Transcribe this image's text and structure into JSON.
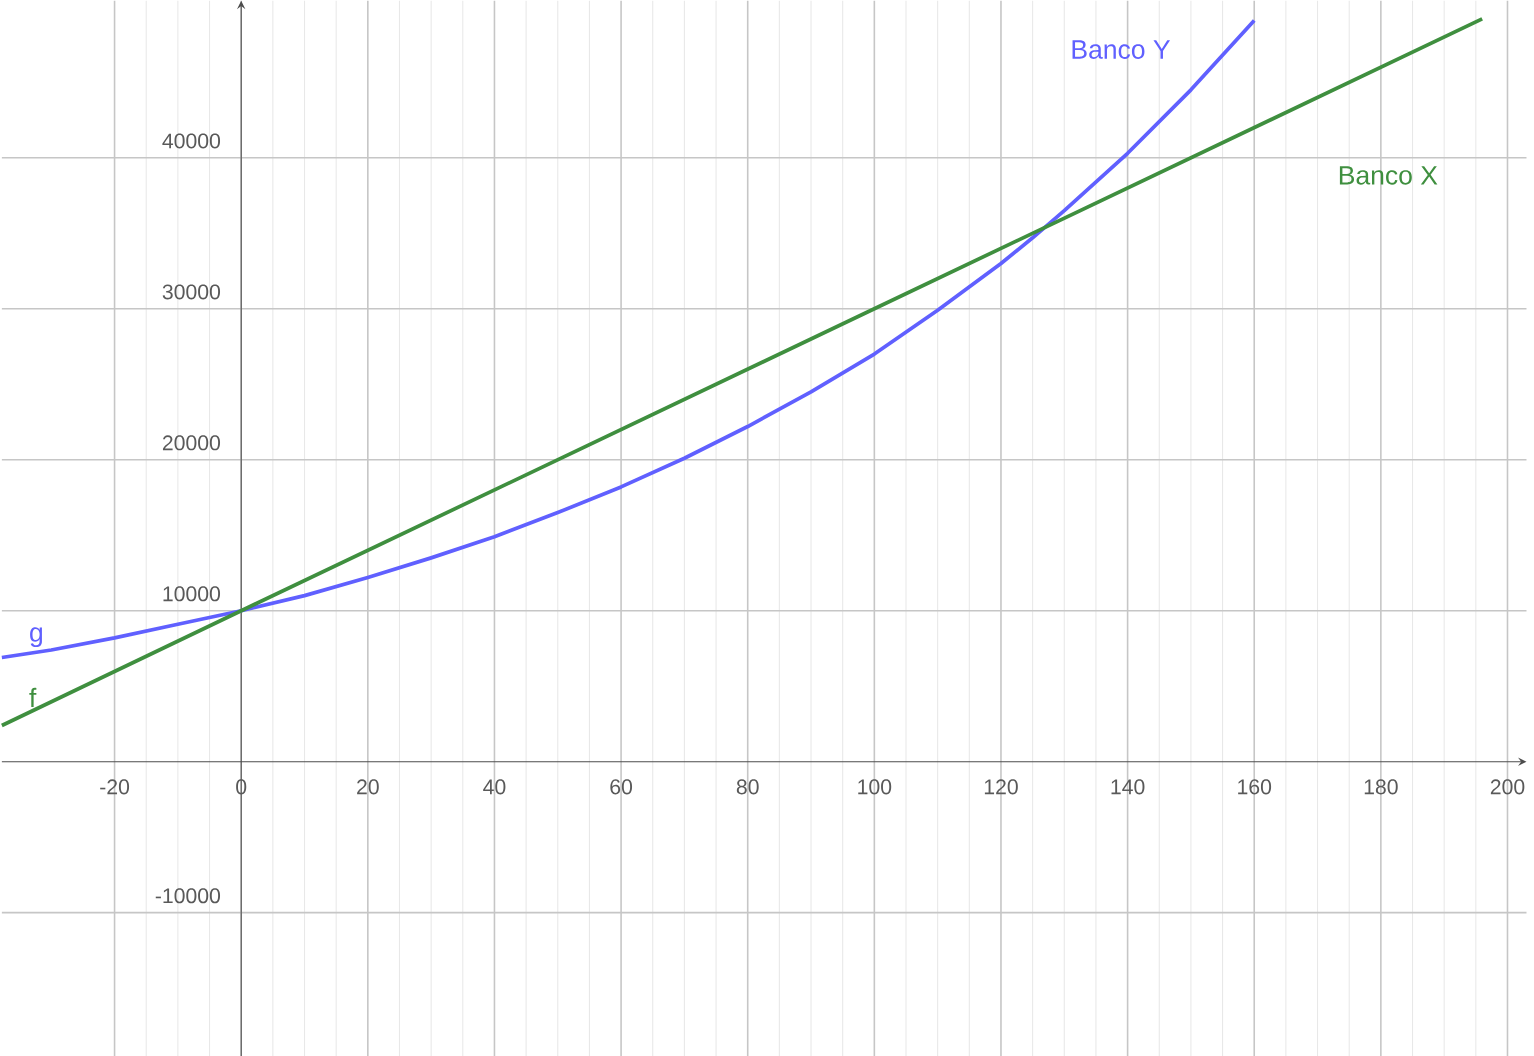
{
  "chart_data": {
    "type": "line",
    "xlim": [
      -37.8,
      203
    ],
    "ylim": [
      -19500,
      50400
    ],
    "xticks": [
      -20,
      0,
      20,
      40,
      60,
      80,
      100,
      120,
      140,
      160,
      180,
      200
    ],
    "yticks": [
      -10000,
      10000,
      20000,
      30000,
      40000
    ],
    "grid": true,
    "marker": "none",
    "line_style": "solid",
    "series": [
      {
        "name": "Banco Y",
        "color": "#6060ff",
        "x": [
          -37.8,
          -30,
          -20,
          -10,
          0,
          10,
          20,
          30,
          40,
          50,
          60,
          70,
          80,
          90,
          100,
          110,
          120,
          125,
          130,
          140,
          150,
          155,
          160
        ],
        "values": [
          6900,
          7400,
          8200,
          9100,
          10000,
          11000,
          12200,
          13500,
          14900,
          16500,
          18200,
          20100,
          22200,
          24500,
          27000,
          29900,
          33000,
          34700,
          36500,
          40300,
          44500,
          46800,
          49100
        ]
      },
      {
        "name": "Banco X",
        "color": "#3f8f3f",
        "x": [
          -37.8,
          0,
          100,
          196
        ],
        "values": [
          2400,
          10000,
          30000,
          49200
        ]
      }
    ],
    "annotations": [
      {
        "text": "g",
        "x": -35,
        "y": 6970
      },
      {
        "text": "f",
        "x": -35,
        "y": 3000
      }
    ]
  }
}
